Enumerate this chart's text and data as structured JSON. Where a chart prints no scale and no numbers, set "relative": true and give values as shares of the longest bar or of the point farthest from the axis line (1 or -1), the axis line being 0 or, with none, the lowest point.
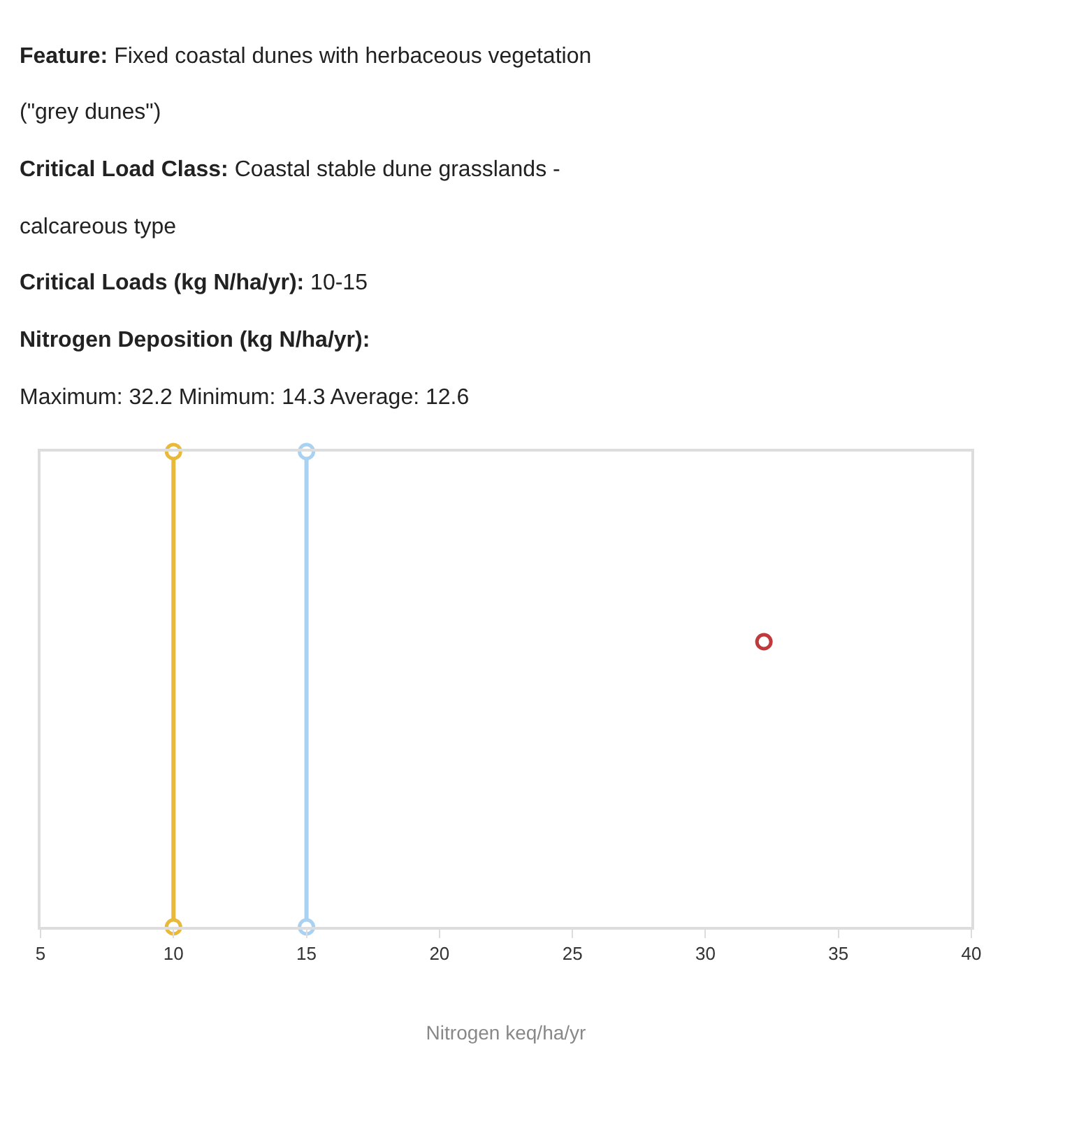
{
  "chart_data": {
    "type": "line",
    "relative": true,
    "xlabel": "Nitrogen keq/ha/yr",
    "annotations": [
      "Feature: Fixed coastal dunes with herbaceous vegetation (\"grey dunes\")",
      "Critical Load Class: Coastal stable dune grasslands - calcareous type",
      "Critical Loads (kg N/ha/yr): 10-15",
      "Nitrogen Deposition (kg N/ha/yr):"
    ],
    "subtitle": "Maximum: 32.2 Minimum: 14.3 Average: 12.6",
    "xlim": [
      5,
      40
    ],
    "xticks": [
      5,
      10,
      15,
      20,
      25,
      30,
      35,
      40
    ],
    "marker": "circle",
    "series": [
      {
        "color": "#e8b93a",
        "x": [
          10,
          10
        ],
        "values": [
          0,
          1
        ]
      },
      {
        "color": "#a9d1f2",
        "x": [
          15,
          15
        ],
        "values": [
          0,
          1
        ]
      },
      {
        "type": "scatter",
        "color": "#c0393b",
        "x": [
          32.2
        ],
        "values": [
          0.6
        ]
      }
    ]
  }
}
